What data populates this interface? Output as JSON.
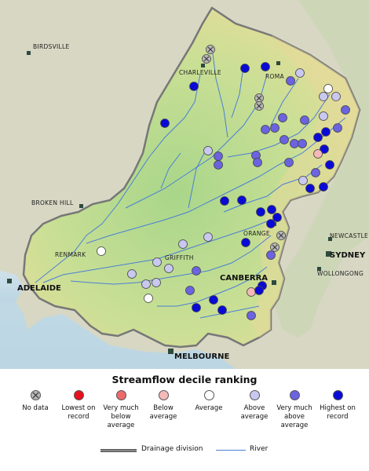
{
  "map": {
    "cities": [
      {
        "id": "birdsville",
        "label": "BIRDSVILLE"
      },
      {
        "id": "charleville",
        "label": "CHARLEVILLE"
      },
      {
        "id": "roma",
        "label": "ROMA"
      },
      {
        "id": "broken-hill",
        "label": "BROKEN HILL"
      },
      {
        "id": "renmark",
        "label": "RENMARK"
      },
      {
        "id": "griffith",
        "label": "GRIFFITH"
      },
      {
        "id": "orange",
        "label": "ORANGE"
      },
      {
        "id": "newcastle",
        "label": "NEWCASTLE"
      },
      {
        "id": "sydney",
        "label": "SYDNEY"
      },
      {
        "id": "wollongong",
        "label": "WOLLONGONG"
      },
      {
        "id": "adelaide",
        "label": "ADELAIDE"
      },
      {
        "id": "canberra",
        "label": "CANBERRA"
      },
      {
        "id": "melbourne",
        "label": "MELBOURNE"
      }
    ]
  },
  "legend": {
    "title": "Streamflow decile ranking",
    "items": [
      {
        "id": "no-data",
        "label": "No data",
        "color": "#b8b8b8"
      },
      {
        "id": "lowest",
        "label": "Lowest on record",
        "color": "#e8101c"
      },
      {
        "id": "very-much-below",
        "label": "Very much below average",
        "color": "#ee6a6a"
      },
      {
        "id": "below",
        "label": "Below average",
        "color": "#f4b8b8"
      },
      {
        "id": "average",
        "label": "Average",
        "color": "#ffffff"
      },
      {
        "id": "above",
        "label": "Above average",
        "color": "#c8c8f0"
      },
      {
        "id": "very-much-above",
        "label": "Very much above average",
        "color": "#6b63e0"
      },
      {
        "id": "highest",
        "label": "Highest on record",
        "color": "#0a0ad6"
      }
    ],
    "division_label": "Drainage division",
    "river_label": "River"
  }
}
